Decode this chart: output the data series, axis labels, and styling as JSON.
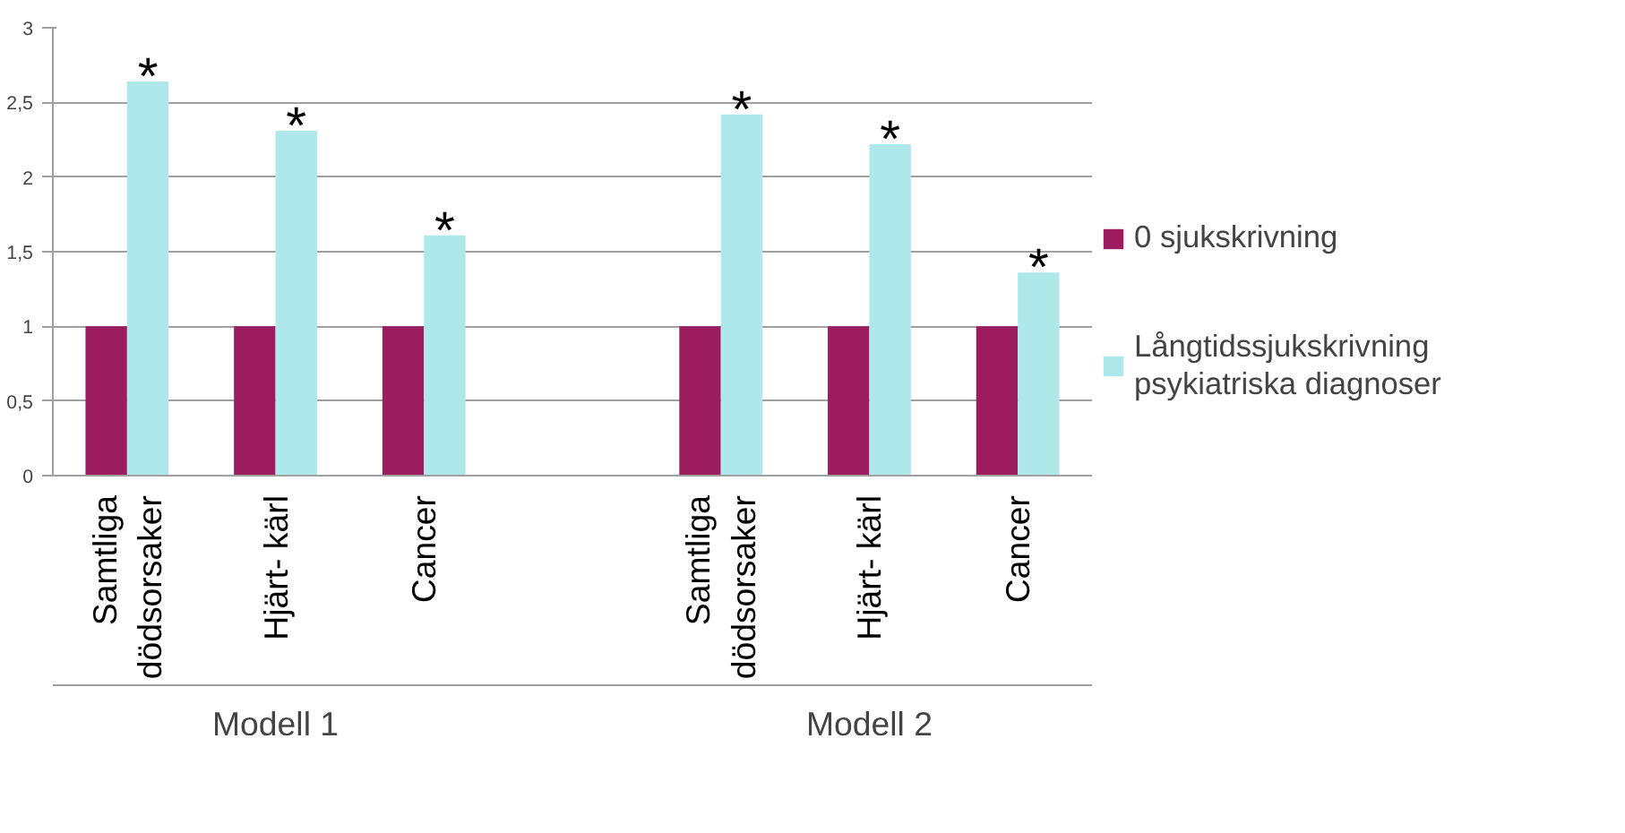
{
  "chart_data": {
    "type": "bar",
    "categories": [
      "Samtliga dödsorsaker",
      "Hjärt- kärl",
      "Cancer",
      null,
      "Samtliga dödsorsaker",
      "Hjärt- kärl",
      "Cancer"
    ],
    "series": [
      {
        "name": "0 sjukskrivning",
        "color": "#9b1c5f",
        "values": [
          1,
          1,
          1,
          null,
          1,
          1,
          1
        ]
      },
      {
        "name": "Långtidssjukskrivning psykiatriska diagnoser",
        "color": "#aee8eb",
        "values": [
          2.64,
          2.31,
          1.61,
          null,
          2.42,
          2.22,
          1.36
        ],
        "value_labels": [
          "*",
          "*",
          "*",
          null,
          "*",
          "*",
          "*"
        ]
      }
    ],
    "annotations": [
      "Modell 1",
      "Modell 2"
    ],
    "ylim": [
      0,
      3
    ],
    "yticks": [
      0,
      {
        "value": 0.5,
        "label": "0,5"
      },
      1,
      {
        "value": 1.5,
        "label": "1,5"
      },
      2,
      {
        "value": 2.5,
        "label": "2,5"
      },
      3
    ],
    "grid": "y",
    "legend": "right"
  }
}
